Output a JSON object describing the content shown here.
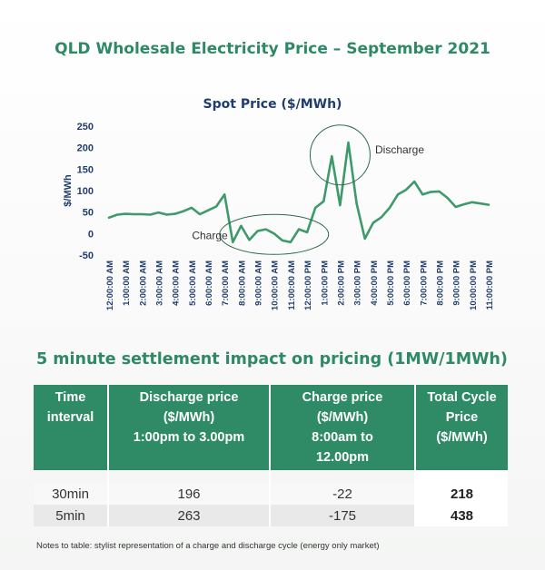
{
  "title": "QLD Wholesale Electricity Price – September 2021",
  "chart_data": {
    "type": "line",
    "title": "Spot Price ($/MWh)",
    "ylabel": "$/MWh",
    "xlabel": "",
    "ylim": [
      -50,
      250
    ],
    "yticks": [
      250,
      200,
      150,
      100,
      50,
      0,
      -50
    ],
    "xticks": [
      "12:00:00 AM",
      "1:00:00 AM",
      "2:00:00 AM",
      "3:00:00 AM",
      "4:00:00 AM",
      "5:00:00 AM",
      "6:00:00 AM",
      "7:00:00 AM",
      "8:00:00 AM",
      "9:00:00 AM",
      "10:00:00 AM",
      "11:00:00 AM",
      "12:00:00 PM",
      "1:00:00 PM",
      "2:00:00 PM",
      "3:00:00 PM",
      "4:00:00 PM",
      "5:00:00 PM",
      "6:00:00 PM",
      "7:00:00 PM",
      "8:00:00 PM",
      "9:00:00 PM",
      "10:00:00 PM",
      "11:00:00 PM"
    ],
    "x": [
      0,
      0.5,
      1,
      1.5,
      2,
      2.5,
      3,
      3.5,
      4,
      4.5,
      5,
      5.5,
      6,
      6.5,
      7,
      7.5,
      8,
      8.5,
      9,
      9.5,
      10,
      10.5,
      11,
      11.5,
      12,
      12.5,
      13,
      13.5,
      14,
      14.5,
      15,
      15.5,
      16,
      16.5,
      17,
      17.5,
      18,
      18.5,
      19,
      19.5,
      20,
      20.5,
      21,
      21.5,
      22,
      22.5,
      23
    ],
    "values": [
      37,
      44,
      46,
      45,
      45,
      44,
      49,
      44,
      46,
      52,
      60,
      45,
      54,
      63,
      91,
      -20,
      18,
      -15,
      6,
      10,
      0,
      -16,
      -20,
      10,
      3,
      60,
      75,
      180,
      66,
      212,
      70,
      -12,
      25,
      38,
      60,
      91,
      102,
      121,
      91,
      97,
      98,
      83,
      62,
      68,
      73,
      70,
      67
    ],
    "annotations": [
      {
        "label": "Charge"
      },
      {
        "label": "Discharge"
      }
    ],
    "color": "#3f9a6b"
  },
  "table": {
    "title": "5 minute settlement impact on pricing (1MW/1MWh)",
    "headers": [
      [
        "Time",
        "interval"
      ],
      [
        "Discharge price",
        "($/MWh)",
        "1:00pm to 3.00pm"
      ],
      [
        "Charge price",
        "($/MWh)",
        "8:00am to",
        "12.00pm"
      ],
      [
        "Total Cycle",
        "Price",
        "($/MWh)"
      ]
    ],
    "rows": [
      [
        "30min",
        "196",
        "-22",
        "218"
      ],
      [
        "5min",
        "263",
        "-175",
        "438"
      ]
    ],
    "note": "Notes to table: stylist representation of a charge and discharge cycle (energy only market)"
  },
  "colors": {
    "accent": "#2e8a66",
    "title_blue": "#1f3d6e",
    "line": "#3f9a6b"
  }
}
